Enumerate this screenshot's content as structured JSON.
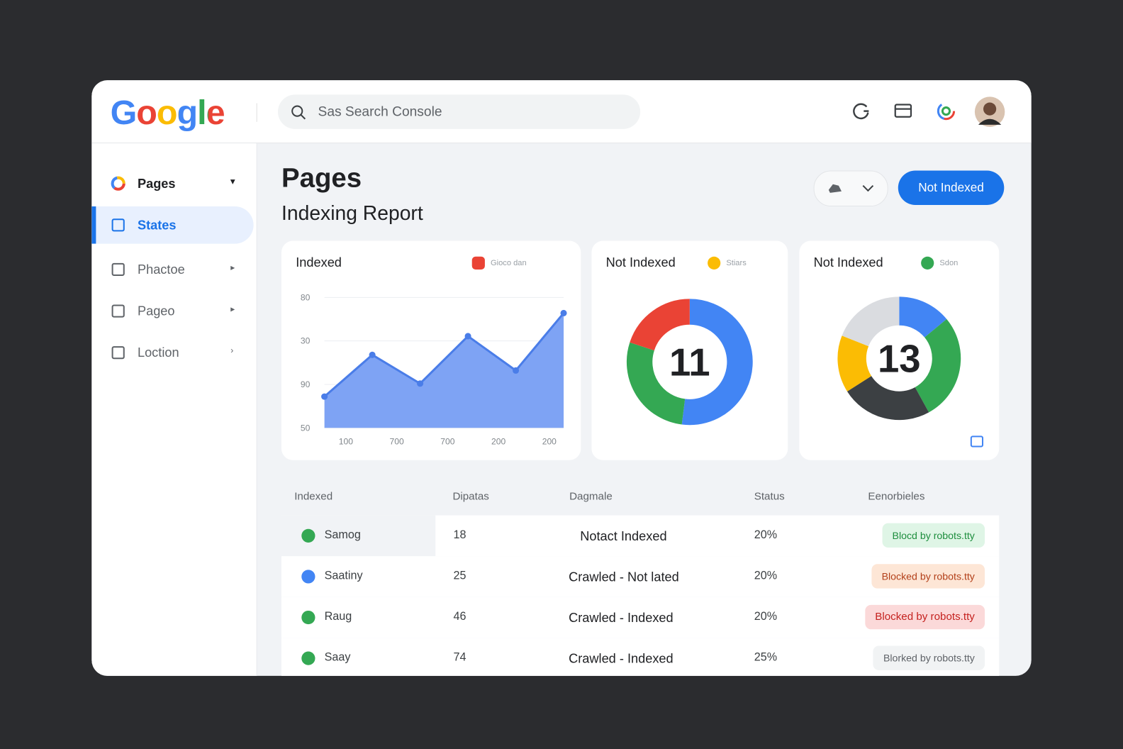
{
  "header": {
    "logo": "Google",
    "search_placeholder": "Sas Search Console"
  },
  "sidebar": {
    "active": 1,
    "items": [
      {
        "label": "Pages",
        "arrow": "▾"
      },
      {
        "label": "States",
        "arrow": ""
      },
      {
        "label": "Phactoe",
        "arrow": "▸"
      },
      {
        "label": "Pageo",
        "arrow": "▸"
      },
      {
        "label": "Loction",
        "arrow": "›"
      }
    ]
  },
  "page": {
    "title": "Pages",
    "subtitle": "Indexing Report",
    "button": "Not Indexed"
  },
  "chart_data": [
    {
      "type": "line",
      "title": "Indexed",
      "legend": "Gioco dan",
      "legend_color": "#ea4335",
      "color": "#4a7de8",
      "ylim": [
        0,
        3
      ],
      "yticks": [
        {
          "value": 3,
          "label": "80"
        },
        {
          "value": 2,
          "label": "30"
        },
        {
          "value": 1,
          "label": "90"
        },
        {
          "value": 0,
          "label": "50"
        }
      ],
      "xtick_labels": [
        "100",
        "700",
        "700",
        "200",
        "200"
      ],
      "values": [
        0.72,
        1.68,
        1.02,
        2.11,
        1.32,
        2.64
      ],
      "grid": true
    },
    {
      "type": "donut",
      "title": "Not Indexed",
      "legend": "Stiars",
      "legend_color": "#fbbc04",
      "center_label": "11",
      "values": [
        52,
        28,
        20
      ],
      "colors": [
        "#4285f4",
        "#34a853",
        "#ea4335"
      ]
    },
    {
      "type": "donut",
      "title": "Not Indexed",
      "legend": "Sdon",
      "legend_color": "#34a853",
      "center_label": "13",
      "values": [
        14,
        28,
        24,
        15,
        19
      ],
      "colors": [
        "#4285f4",
        "#34a853",
        "#3c4043",
        "#fbbc04",
        "#dadce0"
      ]
    }
  ],
  "table": {
    "columns": [
      "Indexed",
      "Dipatas",
      "Dagmale",
      "Status",
      "Eenorbieles"
    ],
    "rows": [
      {
        "icon_color": "#34a853",
        "name": "Samog",
        "count": "18",
        "description": "Notact Indexed",
        "status": "20%",
        "badge": "Blocd by robots.tty",
        "badge_color": "green"
      },
      {
        "icon_color": "#4285f4",
        "name": "Saatiny",
        "count": "25",
        "description": "Crawled - Not lated",
        "status": "20%",
        "badge": "Blocked by robots.tty",
        "badge_color": "orange"
      },
      {
        "icon_color": "#34a853",
        "name": "Raug",
        "count": "46",
        "description": "Crawled - Indexed",
        "status": "20%",
        "badge": "Blocked by robots.tty",
        "badge_color": "red"
      },
      {
        "icon_color": "#34a853",
        "name": "Saay",
        "count": "74",
        "description": "Crawled - Indexed",
        "status": "25%",
        "badge": "Blorked by robots.tty",
        "badge_color": "gray"
      }
    ]
  }
}
